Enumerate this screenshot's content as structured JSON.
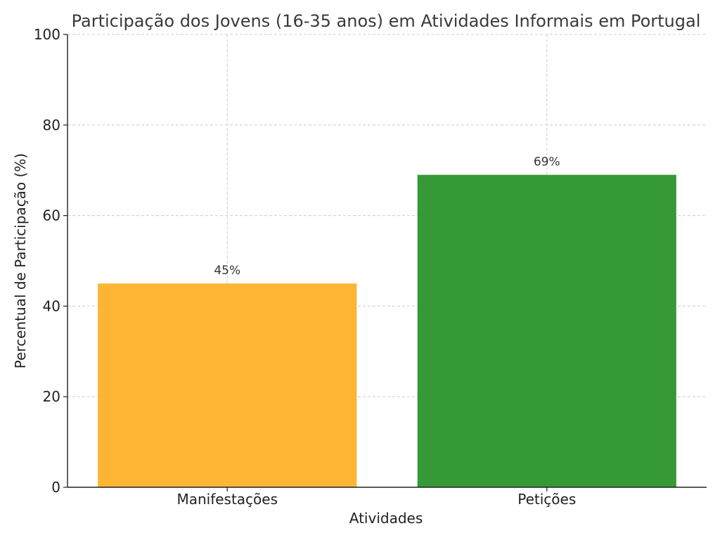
{
  "chart_data": {
    "type": "bar",
    "title": "Participação dos Jovens (16-35 anos) em Atividades Informais em Portugal",
    "xlabel": "Atividades",
    "ylabel": "Percentual de Participação (%)",
    "categories": [
      "Manifestações",
      "Petições"
    ],
    "values": [
      45,
      69
    ],
    "data_labels": [
      "45%",
      "69%"
    ],
    "colors": [
      "#FDB533",
      "#359935"
    ],
    "ylim": [
      0,
      100
    ],
    "yticks": [
      0,
      20,
      40,
      60,
      80,
      100
    ],
    "ytick_labels": [
      "0",
      "20",
      "40",
      "60",
      "80",
      "100"
    ],
    "grid": true,
    "grid_style": "dashed",
    "grid_color": "#cccccc"
  }
}
